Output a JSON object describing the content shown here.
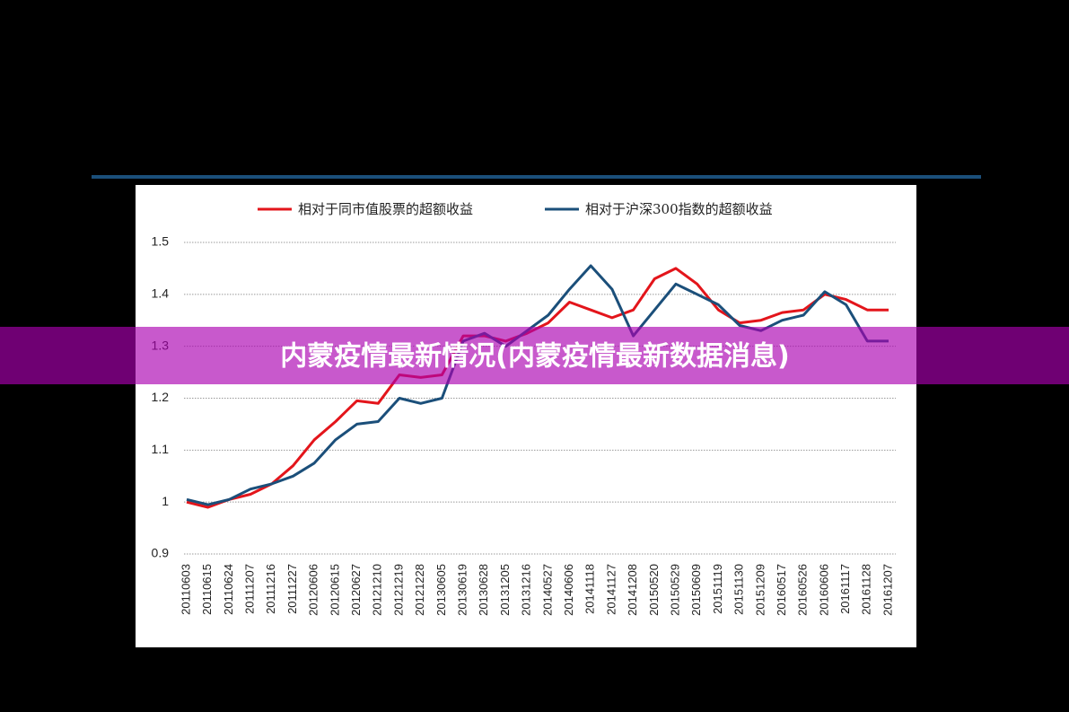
{
  "chart_data": {
    "type": "line",
    "categories": [
      "20110603",
      "20110615",
      "20110624",
      "20111207",
      "20111216",
      "20111227",
      "20120606",
      "20120615",
      "20120627",
      "20121210",
      "20121219",
      "20121228",
      "20130605",
      "20130619",
      "20130628",
      "20131205",
      "20131216",
      "20140527",
      "20140606",
      "20141118",
      "20141127",
      "20141208",
      "20150520",
      "20150529",
      "20150609",
      "20151119",
      "20151130",
      "20151209",
      "20160517",
      "20160526",
      "20160606",
      "20161117",
      "20161128",
      "20161207"
    ],
    "series": [
      {
        "name": "相对于同市值股票的超额收益",
        "color": "#e3151b",
        "values": [
          1.0,
          0.99,
          1.005,
          1.015,
          1.035,
          1.07,
          1.12,
          1.155,
          1.195,
          1.19,
          1.245,
          1.24,
          1.245,
          1.32,
          1.32,
          1.31,
          1.325,
          1.345,
          1.385,
          1.37,
          1.355,
          1.37,
          1.43,
          1.45,
          1.42,
          1.37,
          1.345,
          1.35,
          1.365,
          1.37,
          1.4,
          1.39,
          1.37,
          1.37
        ]
      },
      {
        "name": "相对于沪深300指数的超额收益",
        "color": "#1b4f7a",
        "values": [
          1.005,
          0.995,
          1.005,
          1.025,
          1.035,
          1.05,
          1.075,
          1.12,
          1.15,
          1.155,
          1.2,
          1.19,
          1.2,
          1.31,
          1.325,
          1.3,
          1.33,
          1.36,
          1.41,
          1.455,
          1.41,
          1.32,
          1.37,
          1.42,
          1.4,
          1.38,
          1.34,
          1.33,
          1.35,
          1.36,
          1.405,
          1.38,
          1.31,
          1.31
        ]
      }
    ],
    "ylim": [
      0.9,
      1.5
    ],
    "yticks": [
      0.9,
      1,
      1.1,
      1.2,
      1.3,
      1.4,
      1.5
    ],
    "grid": true
  },
  "banner": {
    "title": "内蒙疫情最新情况(内蒙疫情最新数据消息)"
  }
}
